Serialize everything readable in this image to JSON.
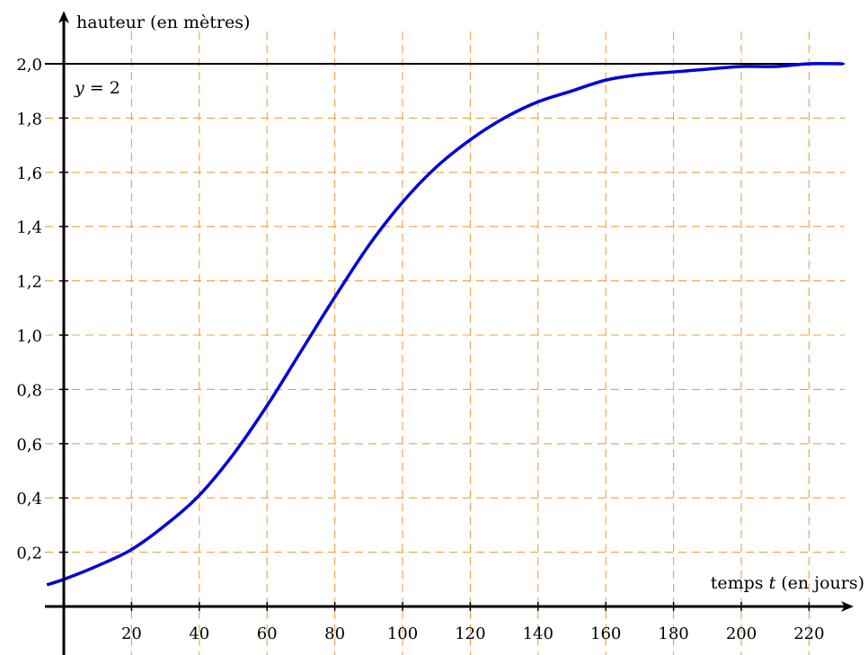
{
  "chart_data": {
    "type": "line",
    "ylabel": "hauteur (en mètres)",
    "xlabel_prefix": "temps ",
    "xlabel_var": "t",
    "xlabel_suffix": " (en jours)",
    "xlim": [
      -5,
      230
    ],
    "ylim": [
      -0.2,
      2.2
    ],
    "grid": true,
    "x_ticks": [
      20,
      40,
      60,
      80,
      100,
      120,
      140,
      160,
      180,
      200,
      220
    ],
    "x_tick_labels": [
      "20",
      "40",
      "60",
      "80",
      "100",
      "120",
      "140",
      "160",
      "180",
      "200",
      "220"
    ],
    "y_ticks": [
      0.2,
      0.4,
      0.6,
      0.8,
      1.0,
      1.2,
      1.4,
      1.6,
      1.8,
      2.0
    ],
    "y_tick_labels": [
      "0,2",
      "0,4",
      "0,6",
      "0,8",
      "1,0",
      "1,2",
      "1,4",
      "1,6",
      "1,8",
      "2,0"
    ],
    "asymptote": {
      "y": 2,
      "label_var": "y",
      "label_rest": " = 2"
    },
    "series": [
      {
        "color": "#0000e0",
        "x": [
          -5,
          0,
          10,
          20,
          30,
          40,
          50,
          60,
          70,
          80,
          90,
          100,
          110,
          120,
          130,
          140,
          150,
          160,
          170,
          180,
          190,
          200,
          210,
          220,
          230
        ],
        "y": [
          0.08,
          0.1,
          0.15,
          0.21,
          0.3,
          0.41,
          0.56,
          0.74,
          0.94,
          1.14,
          1.33,
          1.49,
          1.62,
          1.72,
          1.8,
          1.86,
          1.9,
          1.94,
          1.96,
          1.97,
          1.98,
          1.99,
          1.99,
          2.0,
          2.0
        ]
      }
    ],
    "colors": {
      "grid": "#f0a040",
      "curve": "#0000e0",
      "axis": "#000000"
    }
  }
}
